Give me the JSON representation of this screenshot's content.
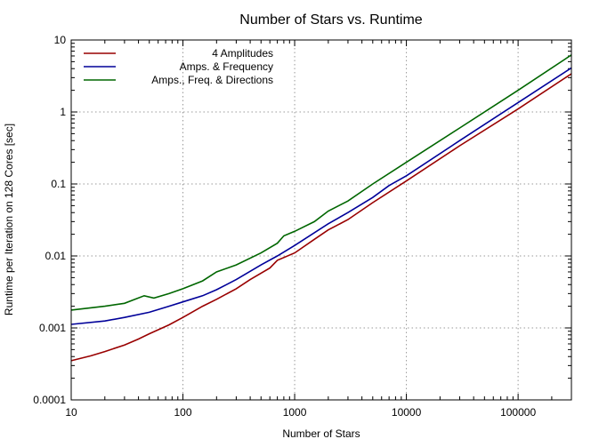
{
  "chart_data": {
    "type": "line",
    "title": "Number of Stars vs. Runtime",
    "xlabel": "Number of Stars",
    "ylabel": "Runtime per Iteration on 128 Cores [sec]",
    "xscale": "log",
    "yscale": "log",
    "xlim": [
      10,
      300000
    ],
    "ylim": [
      0.0001,
      10
    ],
    "xticks": [
      "10",
      "100",
      "1000",
      "10000",
      "100000"
    ],
    "yticks": [
      "0.0001",
      "0.001",
      "0.01",
      "0.1",
      "1",
      "10"
    ],
    "grid": true,
    "legend_position": "top-left",
    "series": [
      {
        "name": "4 Amplitudes",
        "color": "#990000",
        "x": [
          10,
          15,
          20,
          30,
          40,
          50,
          75,
          100,
          150,
          200,
          300,
          400,
          600,
          700,
          1000,
          1500,
          2000,
          3000,
          5000,
          10000,
          30000,
          100000,
          300000
        ],
        "y": [
          0.00035,
          0.00041,
          0.00047,
          0.00058,
          0.0007,
          0.00083,
          0.0011,
          0.0014,
          0.002,
          0.0025,
          0.0035,
          0.0047,
          0.0068,
          0.0087,
          0.011,
          0.017,
          0.023,
          0.032,
          0.055,
          0.11,
          0.34,
          1.1,
          3.4
        ]
      },
      {
        "name": "Amps. & Frequency",
        "color": "#000099",
        "x": [
          10,
          20,
          30,
          50,
          75,
          100,
          150,
          200,
          300,
          500,
          700,
          1000,
          2000,
          3000,
          5000,
          7000,
          10000,
          30000,
          100000,
          300000
        ],
        "y": [
          0.00112,
          0.00125,
          0.0014,
          0.00165,
          0.002,
          0.0023,
          0.0028,
          0.0034,
          0.0047,
          0.0075,
          0.01,
          0.014,
          0.028,
          0.04,
          0.065,
          0.095,
          0.13,
          0.4,
          1.35,
          4.1
        ]
      },
      {
        "name": "Amps., Freq. & Directions",
        "color": "#006600",
        "x": [
          10,
          20,
          30,
          45,
          55,
          75,
          100,
          150,
          200,
          300,
          500,
          700,
          800,
          1000,
          1500,
          2000,
          3000,
          5000,
          10000,
          30000,
          100000,
          300000
        ],
        "y": [
          0.00177,
          0.002,
          0.0022,
          0.0028,
          0.0026,
          0.003,
          0.0035,
          0.0045,
          0.006,
          0.0075,
          0.011,
          0.015,
          0.019,
          0.022,
          0.03,
          0.042,
          0.058,
          0.1,
          0.2,
          0.6,
          2.0,
          6.2
        ]
      }
    ]
  }
}
